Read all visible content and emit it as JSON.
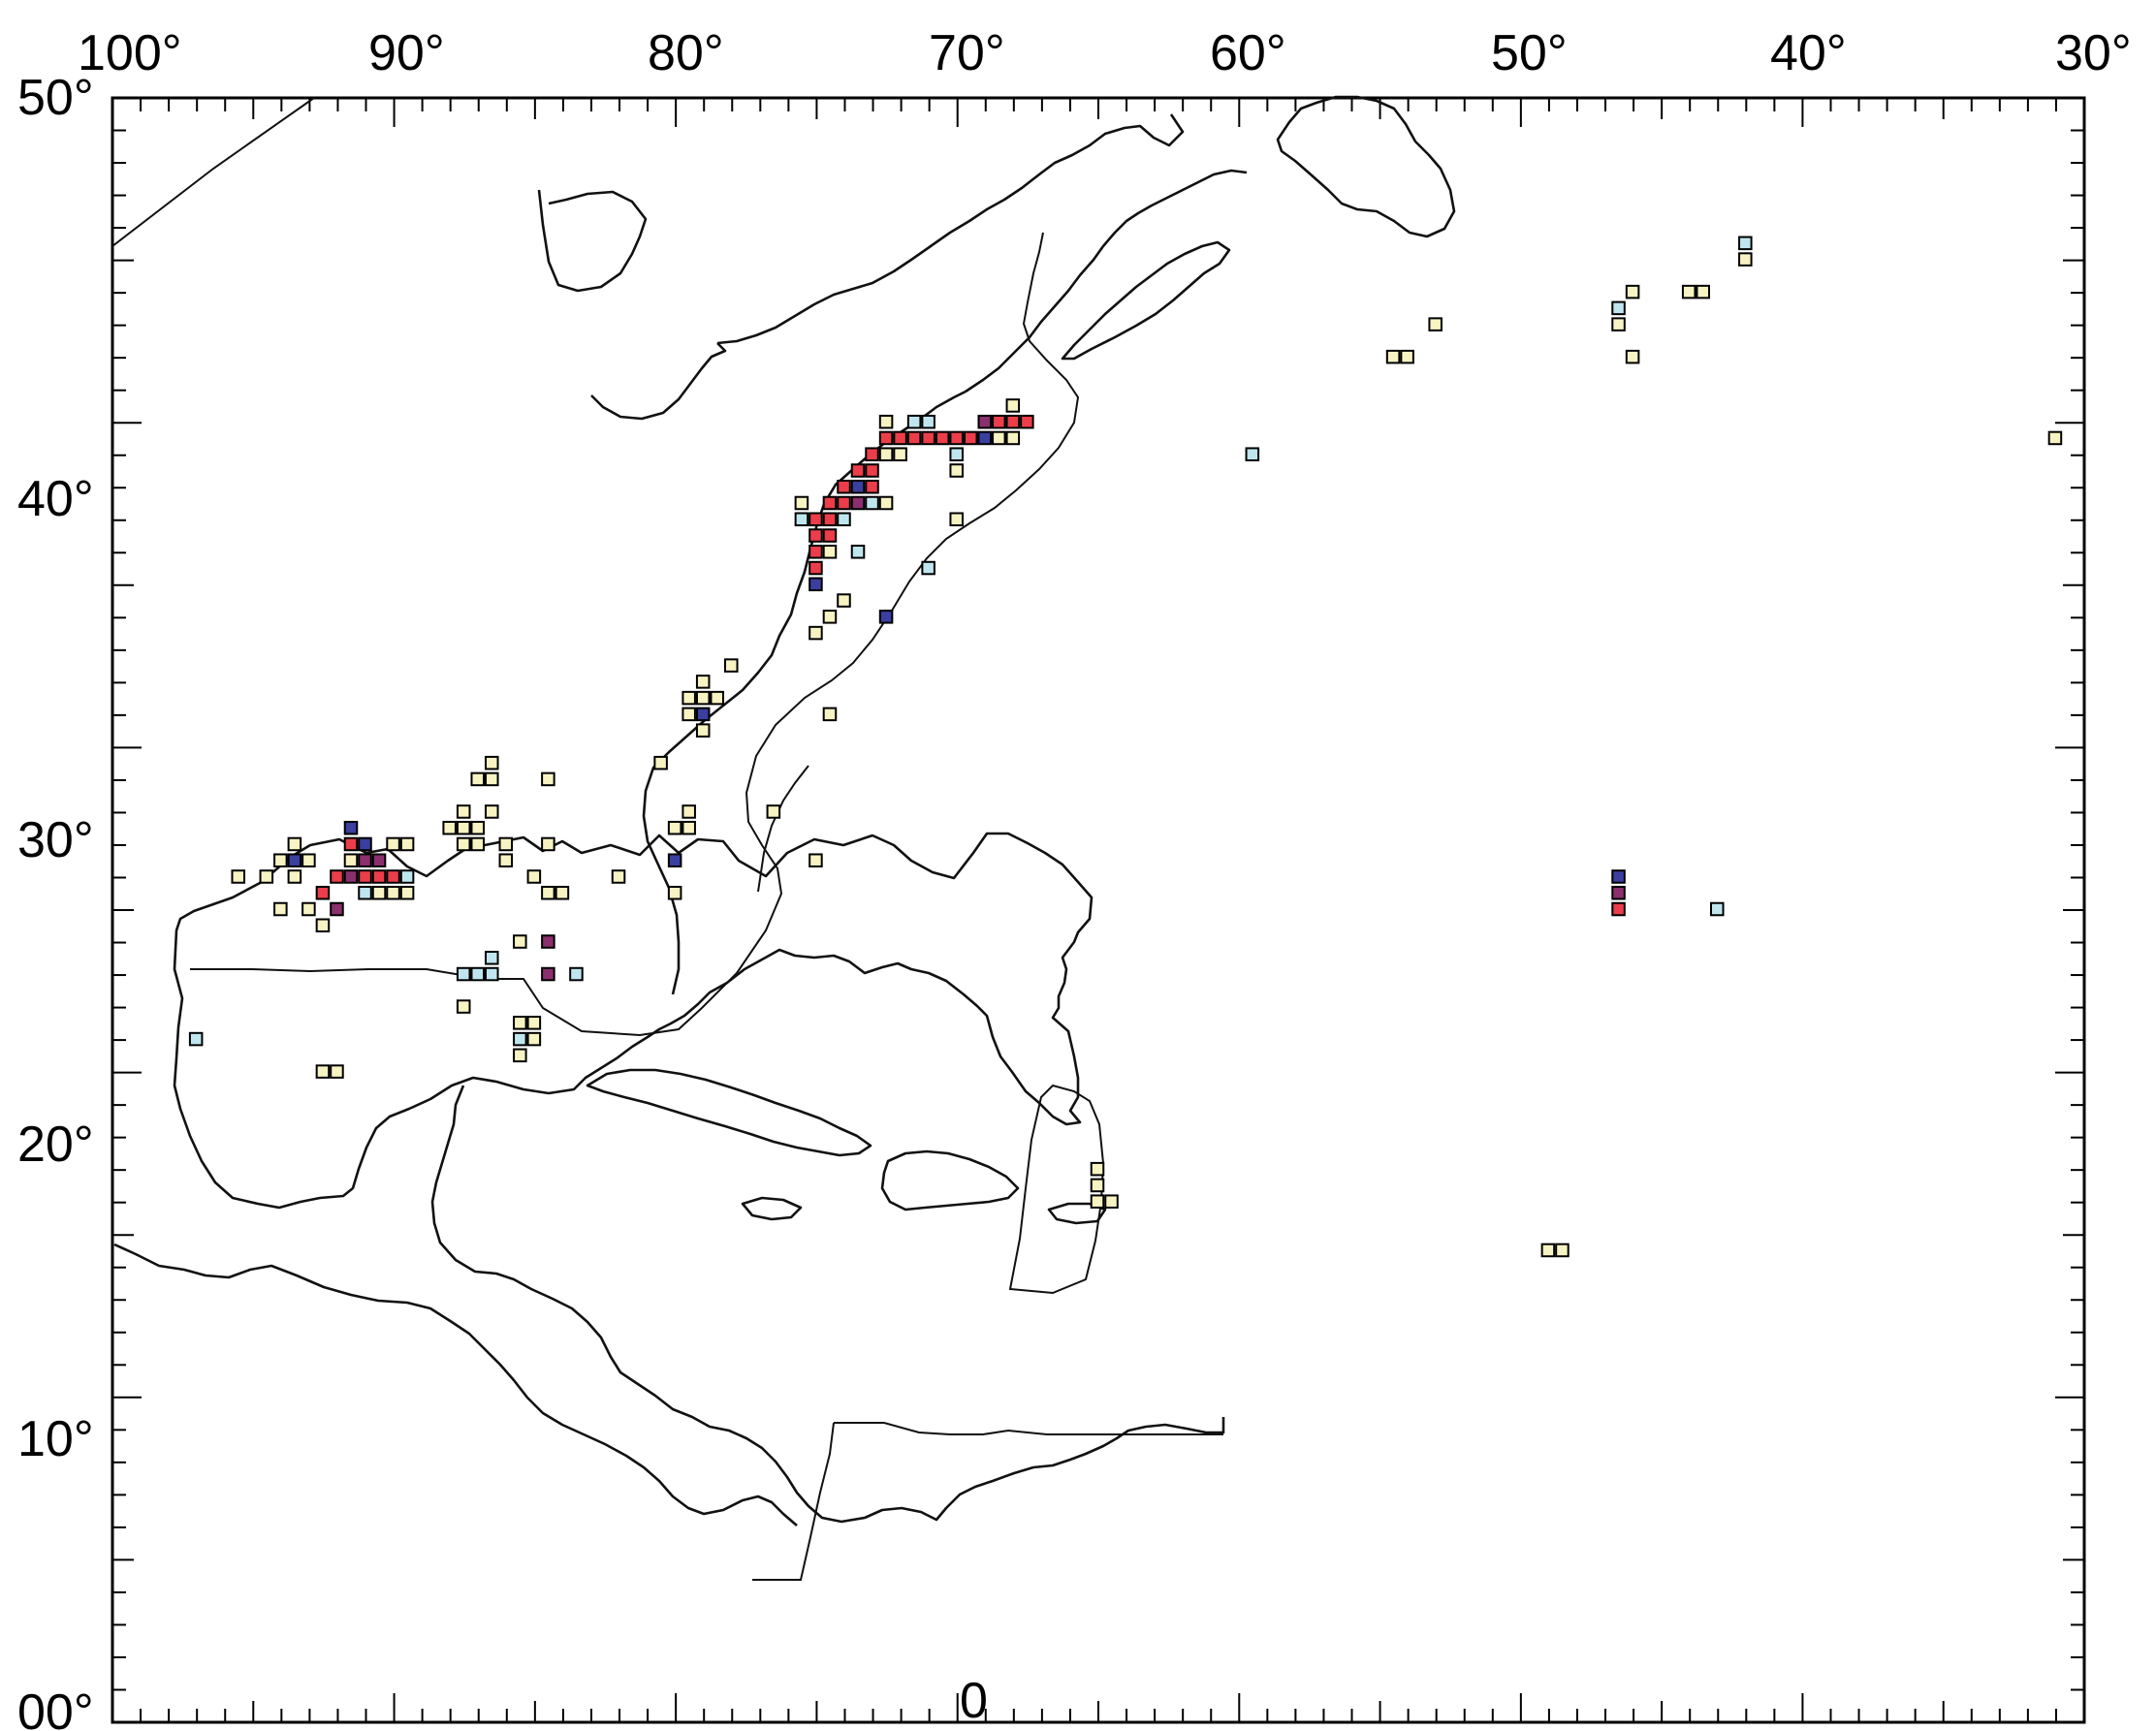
{
  "map": {
    "top_labels": [
      "100°",
      "90°",
      "80°",
      "70°",
      "60°",
      "50°",
      "40°",
      "30°"
    ],
    "left_labels": [
      "50°",
      "40°",
      "30°",
      "20°",
      "10°",
      "00°"
    ],
    "bottom_label": "0",
    "longitude_range": [
      -100,
      -30
    ],
    "latitude_range": [
      0,
      50
    ],
    "colors": {
      "cream": "#f7f3c2",
      "light_blue": "#bfe6ef",
      "red": "#ec3d4a",
      "dark_blue": "#3a3fa0",
      "purple": "#8b2f6e"
    },
    "grid_cells": [
      {
        "lon": -95.5,
        "lat": 26.0,
        "c": "cream"
      },
      {
        "lon": -94.5,
        "lat": 26.0,
        "c": "cream"
      },
      {
        "lon": -94.0,
        "lat": 26.5,
        "c": "cream"
      },
      {
        "lon": -93.5,
        "lat": 26.0,
        "c": "cream"
      },
      {
        "lon": -93.5,
        "lat": 26.5,
        "c": "dark_blue"
      },
      {
        "lon": -93.5,
        "lat": 27.0,
        "c": "cream"
      },
      {
        "lon": -93.0,
        "lat": 26.5,
        "c": "cream"
      },
      {
        "lon": -94.0,
        "lat": 25.0,
        "c": "cream"
      },
      {
        "lon": -93.0,
        "lat": 25.0,
        "c": "cream"
      },
      {
        "lon": -92.5,
        "lat": 24.5,
        "c": "cream"
      },
      {
        "lon": -92.5,
        "lat": 25.5,
        "c": "red"
      },
      {
        "lon": -92.0,
        "lat": 25.0,
        "c": "purple"
      },
      {
        "lon": -92.0,
        "lat": 26.0,
        "c": "red"
      },
      {
        "lon": -91.5,
        "lat": 26.0,
        "c": "purple"
      },
      {
        "lon": -91.5,
        "lat": 26.5,
        "c": "cream"
      },
      {
        "lon": -91.5,
        "lat": 27.0,
        "c": "red"
      },
      {
        "lon": -91.5,
        "lat": 27.5,
        "c": "dark_blue"
      },
      {
        "lon": -91.0,
        "lat": 26.0,
        "c": "red"
      },
      {
        "lon": -91.0,
        "lat": 26.5,
        "c": "purple"
      },
      {
        "lon": -91.0,
        "lat": 27.0,
        "c": "dark_blue"
      },
      {
        "lon": -91.0,
        "lat": 25.5,
        "c": "light_blue"
      },
      {
        "lon": -90.5,
        "lat": 26.0,
        "c": "red"
      },
      {
        "lon": -90.5,
        "lat": 26.5,
        "c": "purple"
      },
      {
        "lon": -90.5,
        "lat": 25.5,
        "c": "cream"
      },
      {
        "lon": -90.0,
        "lat": 26.0,
        "c": "red"
      },
      {
        "lon": -90.0,
        "lat": 25.5,
        "c": "cream"
      },
      {
        "lon": -90.0,
        "lat": 27.0,
        "c": "cream"
      },
      {
        "lon": -89.5,
        "lat": 27.0,
        "c": "cream"
      },
      {
        "lon": -89.5,
        "lat": 26.0,
        "c": "light_blue"
      },
      {
        "lon": -89.5,
        "lat": 25.5,
        "c": "cream"
      },
      {
        "lon": -88.0,
        "lat": 27.5,
        "c": "cream"
      },
      {
        "lon": -87.5,
        "lat": 27.5,
        "c": "cream"
      },
      {
        "lon": -87.5,
        "lat": 28.0,
        "c": "cream"
      },
      {
        "lon": -87.5,
        "lat": 27.0,
        "c": "cream"
      },
      {
        "lon": -87.0,
        "lat": 27.0,
        "c": "cream"
      },
      {
        "lon": -87.0,
        "lat": 27.5,
        "c": "cream"
      },
      {
        "lon": -87.0,
        "lat": 29.0,
        "c": "cream"
      },
      {
        "lon": -86.5,
        "lat": 29.0,
        "c": "cream"
      },
      {
        "lon": -86.5,
        "lat": 29.5,
        "c": "cream"
      },
      {
        "lon": -86.5,
        "lat": 28.0,
        "c": "cream"
      },
      {
        "lon": -86.0,
        "lat": 26.5,
        "c": "cream"
      },
      {
        "lon": -86.0,
        "lat": 27.0,
        "c": "cream"
      },
      {
        "lon": -85.0,
        "lat": 26.0,
        "c": "cream"
      },
      {
        "lon": -84.5,
        "lat": 25.5,
        "c": "cream"
      },
      {
        "lon": -84.0,
        "lat": 25.5,
        "c": "cream"
      },
      {
        "lon": -84.5,
        "lat": 27.0,
        "c": "cream"
      },
      {
        "lon": -84.5,
        "lat": 29.0,
        "c": "cream"
      },
      {
        "lon": -82.0,
        "lat": 26.0,
        "c": "cream"
      },
      {
        "lon": -87.5,
        "lat": 23.0,
        "c": "light_blue"
      },
      {
        "lon": -87.0,
        "lat": 23.0,
        "c": "light_blue"
      },
      {
        "lon": -86.5,
        "lat": 23.0,
        "c": "light_blue"
      },
      {
        "lon": -86.5,
        "lat": 23.5,
        "c": "light_blue"
      },
      {
        "lon": -87.5,
        "lat": 22.0,
        "c": "cream"
      },
      {
        "lon": -85.5,
        "lat": 24.0,
        "c": "cream"
      },
      {
        "lon": -84.5,
        "lat": 24.0,
        "c": "purple"
      },
      {
        "lon": -84.5,
        "lat": 23.0,
        "c": "purple"
      },
      {
        "lon": -83.5,
        "lat": 23.0,
        "c": "light_blue"
      },
      {
        "lon": -85.5,
        "lat": 21.5,
        "c": "cream"
      },
      {
        "lon": -85.0,
        "lat": 21.5,
        "c": "cream"
      },
      {
        "lon": -85.5,
        "lat": 21.0,
        "c": "light_blue"
      },
      {
        "lon": -85.0,
        "lat": 21.0,
        "c": "cream"
      },
      {
        "lon": -85.5,
        "lat": 20.5,
        "c": "cream"
      },
      {
        "lon": -97.0,
        "lat": 21.0,
        "c": "light_blue"
      },
      {
        "lon": -92.5,
        "lat": 20.0,
        "c": "cream"
      },
      {
        "lon": -92.0,
        "lat": 20.0,
        "c": "cream"
      },
      {
        "lon": -80.0,
        "lat": 26.5,
        "c": "dark_blue"
      },
      {
        "lon": -80.0,
        "lat": 25.5,
        "c": "cream"
      },
      {
        "lon": -79.5,
        "lat": 27.5,
        "c": "cream"
      },
      {
        "lon": -79.5,
        "lat": 28.0,
        "c": "cream"
      },
      {
        "lon": -80.0,
        "lat": 27.5,
        "c": "cream"
      },
      {
        "lon": -80.5,
        "lat": 29.5,
        "c": "cream"
      },
      {
        "lon": -79.5,
        "lat": 31.0,
        "c": "cream"
      },
      {
        "lon": -79.5,
        "lat": 31.5,
        "c": "cream"
      },
      {
        "lon": -79.0,
        "lat": 31.0,
        "c": "dark_blue"
      },
      {
        "lon": -79.0,
        "lat": 31.5,
        "c": "cream"
      },
      {
        "lon": -79.0,
        "lat": 32.0,
        "c": "cream"
      },
      {
        "lon": -78.5,
        "lat": 31.5,
        "c": "cream"
      },
      {
        "lon": -79.0,
        "lat": 30.5,
        "c": "cream"
      },
      {
        "lon": -78.0,
        "lat": 32.5,
        "c": "cream"
      },
      {
        "lon": -76.5,
        "lat": 28.0,
        "c": "cream"
      },
      {
        "lon": -75.0,
        "lat": 26.5,
        "c": "cream"
      },
      {
        "lon": -74.5,
        "lat": 31.0,
        "c": "cream"
      },
      {
        "lon": -75.0,
        "lat": 33.5,
        "c": "cream"
      },
      {
        "lon": -74.5,
        "lat": 34.0,
        "c": "cream"
      },
      {
        "lon": -74.0,
        "lat": 34.5,
        "c": "cream"
      },
      {
        "lon": -72.5,
        "lat": 34.0,
        "c": "dark_blue"
      },
      {
        "lon": -75.0,
        "lat": 35.0,
        "c": "dark_blue"
      },
      {
        "lon": -75.0,
        "lat": 35.5,
        "c": "red"
      },
      {
        "lon": -75.0,
        "lat": 36.0,
        "c": "red"
      },
      {
        "lon": -75.0,
        "lat": 36.5,
        "c": "red"
      },
      {
        "lon": -75.0,
        "lat": 37.0,
        "c": "red"
      },
      {
        "lon": -75.5,
        "lat": 37.0,
        "c": "light_blue"
      },
      {
        "lon": -75.5,
        "lat": 37.5,
        "c": "cream"
      },
      {
        "lon": -74.5,
        "lat": 36.5,
        "c": "red"
      },
      {
        "lon": -74.5,
        "lat": 37.0,
        "c": "red"
      },
      {
        "lon": -74.5,
        "lat": 37.5,
        "c": "red"
      },
      {
        "lon": -74.0,
        "lat": 37.0,
        "c": "light_blue"
      },
      {
        "lon": -74.0,
        "lat": 37.5,
        "c": "red"
      },
      {
        "lon": -74.0,
        "lat": 38.0,
        "c": "red"
      },
      {
        "lon": -73.5,
        "lat": 37.5,
        "c": "purple"
      },
      {
        "lon": -73.5,
        "lat": 38.0,
        "c": "dark_blue"
      },
      {
        "lon": -73.5,
        "lat": 38.5,
        "c": "red"
      },
      {
        "lon": -73.0,
        "lat": 37.5,
        "c": "light_blue"
      },
      {
        "lon": -73.0,
        "lat": 38.0,
        "c": "red"
      },
      {
        "lon": -73.0,
        "lat": 38.5,
        "c": "red"
      },
      {
        "lon": -73.0,
        "lat": 39.0,
        "c": "red"
      },
      {
        "lon": -72.5,
        "lat": 39.0,
        "c": "cream"
      },
      {
        "lon": -72.5,
        "lat": 39.5,
        "c": "red"
      },
      {
        "lon": -72.5,
        "lat": 40.0,
        "c": "cream"
      },
      {
        "lon": -72.0,
        "lat": 39.5,
        "c": "red"
      },
      {
        "lon": -72.0,
        "lat": 39.0,
        "c": "cream"
      },
      {
        "lon": -71.5,
        "lat": 39.5,
        "c": "red"
      },
      {
        "lon": -71.5,
        "lat": 40.0,
        "c": "light_blue"
      },
      {
        "lon": -71.0,
        "lat": 39.5,
        "c": "red"
      },
      {
        "lon": -71.0,
        "lat": 40.0,
        "c": "light_blue"
      },
      {
        "lon": -70.5,
        "lat": 39.5,
        "c": "red"
      },
      {
        "lon": -70.0,
        "lat": 39.5,
        "c": "red"
      },
      {
        "lon": -70.0,
        "lat": 39.0,
        "c": "light_blue"
      },
      {
        "lon": -70.0,
        "lat": 38.5,
        "c": "cream"
      },
      {
        "lon": -69.5,
        "lat": 39.5,
        "c": "red"
      },
      {
        "lon": -69.0,
        "lat": 39.5,
        "c": "dark_blue"
      },
      {
        "lon": -69.0,
        "lat": 40.0,
        "c": "purple"
      },
      {
        "lon": -68.5,
        "lat": 40.0,
        "c": "red"
      },
      {
        "lon": -68.5,
        "lat": 39.5,
        "c": "cream"
      },
      {
        "lon": -68.0,
        "lat": 40.0,
        "c": "red"
      },
      {
        "lon": -68.0,
        "lat": 39.5,
        "c": "cream"
      },
      {
        "lon": -68.0,
        "lat": 40.5,
        "c": "cream"
      },
      {
        "lon": -67.5,
        "lat": 40.0,
        "c": "red"
      },
      {
        "lon": -73.5,
        "lat": 36.0,
        "c": "light_blue"
      },
      {
        "lon": -74.5,
        "lat": 36.0,
        "c": "cream"
      },
      {
        "lon": -72.5,
        "lat": 37.5,
        "c": "cream"
      },
      {
        "lon": -71.0,
        "lat": 35.5,
        "c": "light_blue"
      },
      {
        "lon": -70.0,
        "lat": 37.0,
        "c": "cream"
      },
      {
        "lon": -59.5,
        "lat": 39.0,
        "c": "light_blue"
      },
      {
        "lon": -54.5,
        "lat": 42.0,
        "c": "cream"
      },
      {
        "lon": -54.0,
        "lat": 42.0,
        "c": "cream"
      },
      {
        "lon": -53.0,
        "lat": 43.0,
        "c": "cream"
      },
      {
        "lon": -46.5,
        "lat": 43.0,
        "c": "cream"
      },
      {
        "lon": -46.5,
        "lat": 43.5,
        "c": "light_blue"
      },
      {
        "lon": -46.0,
        "lat": 44.0,
        "c": "cream"
      },
      {
        "lon": -46.0,
        "lat": 42.0,
        "c": "cream"
      },
      {
        "lon": -44.0,
        "lat": 44.0,
        "c": "cream"
      },
      {
        "lon": -43.5,
        "lat": 44.0,
        "c": "cream"
      },
      {
        "lon": -42.0,
        "lat": 45.0,
        "c": "cream"
      },
      {
        "lon": -42.0,
        "lat": 45.5,
        "c": "light_blue"
      },
      {
        "lon": -31.0,
        "lat": 39.5,
        "c": "cream"
      },
      {
        "lon": -46.5,
        "lat": 26.0,
        "c": "dark_blue"
      },
      {
        "lon": -46.5,
        "lat": 25.5,
        "c": "purple"
      },
      {
        "lon": -46.5,
        "lat": 25.0,
        "c": "red"
      },
      {
        "lon": -43.0,
        "lat": 25.0,
        "c": "light_blue"
      },
      {
        "lon": -49.0,
        "lat": 14.5,
        "c": "cream"
      },
      {
        "lon": -48.5,
        "lat": 14.5,
        "c": "cream"
      },
      {
        "lon": -65.0,
        "lat": 17.0,
        "c": "cream"
      },
      {
        "lon": -65.0,
        "lat": 16.5,
        "c": "cream"
      },
      {
        "lon": -65.0,
        "lat": 16.0,
        "c": "cream"
      },
      {
        "lon": -64.5,
        "lat": 16.0,
        "c": "cream"
      }
    ]
  }
}
